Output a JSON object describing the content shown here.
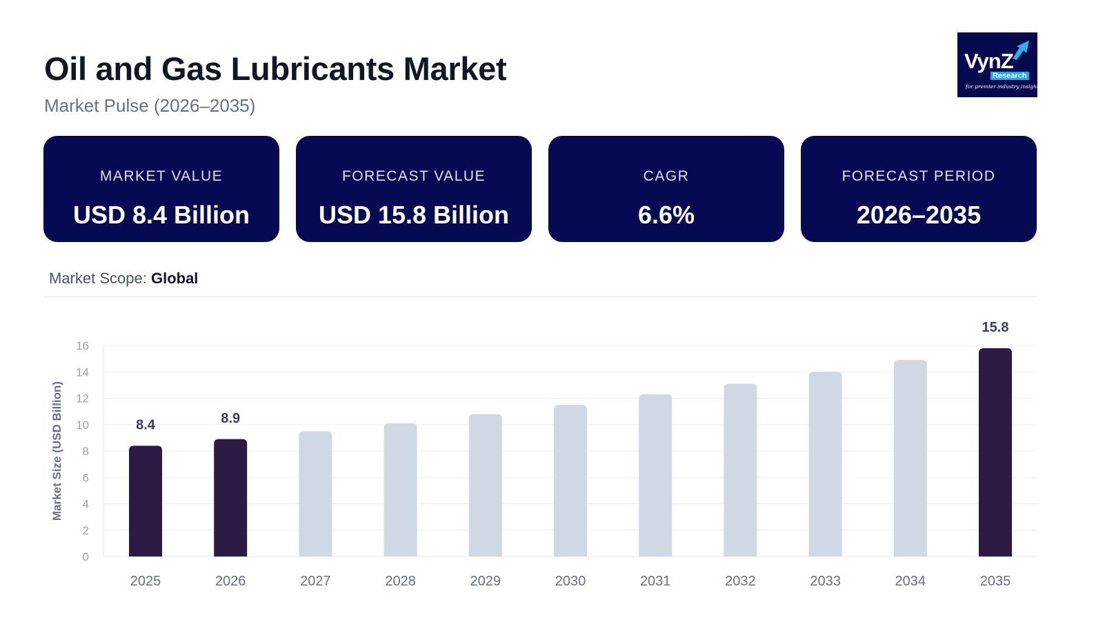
{
  "header": {
    "title": "Oil and Gas Lubricants Market",
    "subtitle": "Market Pulse (2026–2035)"
  },
  "logo": {
    "brand": "VynZ",
    "research": "Research",
    "tagline": "for premier industry insights"
  },
  "cards": [
    {
      "label": "MARKET VALUE",
      "value": "USD 8.4 Billion"
    },
    {
      "label": "FORECAST VALUE",
      "value": "USD 15.8 Billion"
    },
    {
      "label": "CAGR",
      "value": "6.6%"
    },
    {
      "label": "FORECAST PERIOD",
      "value": "2026–2035"
    }
  ],
  "scope": {
    "label": "Market Scope:",
    "value": "Global"
  },
  "colors": {
    "card_bg": "#060a52",
    "highlight_bar": "#2c1c45",
    "regular_bar": "#cfd8e4"
  },
  "chart_data": {
    "type": "bar",
    "categories": [
      "2025",
      "2026",
      "2027",
      "2028",
      "2029",
      "2030",
      "2031",
      "2032",
      "2033",
      "2034",
      "2035"
    ],
    "values": [
      8.4,
      8.9,
      9.5,
      10.1,
      10.8,
      11.5,
      12.3,
      13.1,
      14.0,
      14.9,
      15.8
    ],
    "highlighted": [
      true,
      true,
      false,
      false,
      false,
      false,
      false,
      false,
      false,
      false,
      true
    ],
    "data_labels": [
      "8.4",
      "8.9",
      "",
      "",
      "",
      "",
      "",
      "",
      "",
      "",
      "15.8"
    ],
    "ylabel": "Market Size (USD Billion)",
    "xlabel": "",
    "ylim": [
      0,
      16
    ],
    "yticks": [
      0,
      2,
      4,
      6,
      8,
      10,
      12,
      14,
      16
    ],
    "grid": true,
    "legend": "none"
  }
}
